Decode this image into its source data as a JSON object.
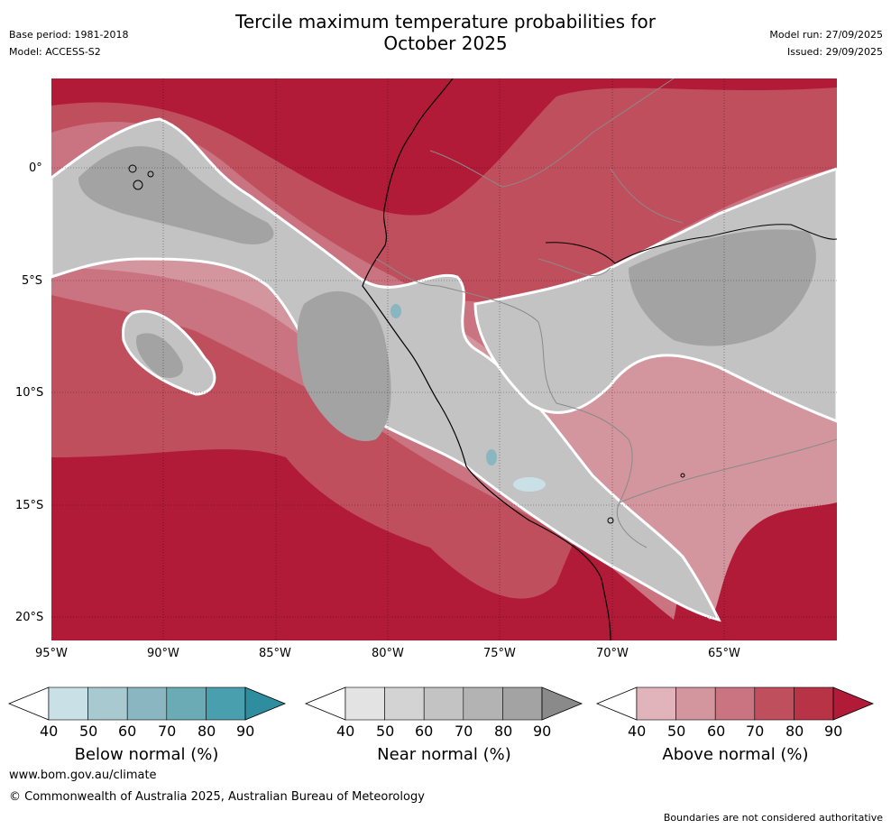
{
  "header": {
    "title_line1": "Tercile maximum temperature probabilities for",
    "title_line2": "October 2025",
    "base_period": "Base period: 1981-2018",
    "model": "Model: ACCESS-S2",
    "model_run": "Model run: 27/09/2025",
    "issued": "Issued: 29/09/2025"
  },
  "map": {
    "y_ticks": [
      "0°",
      "5°S",
      "10°S",
      "15°S",
      "20°S"
    ],
    "x_ticks": [
      "95°W",
      "90°W",
      "85°W",
      "80°W",
      "75°W",
      "70°W",
      "65°W"
    ]
  },
  "colorbars": [
    {
      "label": "Below normal (%)",
      "ticks": [
        "40",
        "50",
        "60",
        "70",
        "80",
        "90"
      ],
      "colors": [
        "#c9e1e6",
        "#a7c9cf",
        "#89b6c0",
        "#6aabb6",
        "#4a9fae",
        "#2f8da0"
      ]
    },
    {
      "label": "Near normal (%)",
      "ticks": [
        "40",
        "50",
        "60",
        "70",
        "80",
        "90"
      ],
      "colors": [
        "#e3e3e3",
        "#d3d3d3",
        "#c3c3c3",
        "#b3b3b3",
        "#a3a3a3",
        "#8a8a8a"
      ]
    },
    {
      "label": "Above normal (%)",
      "ticks": [
        "40",
        "50",
        "60",
        "70",
        "80",
        "90"
      ],
      "colors": [
        "#e0b4ba",
        "#d3969e",
        "#c97480",
        "#c04f5e",
        "#b83346",
        "#b21b37"
      ]
    }
  ],
  "footer": {
    "website": "www.bom.gov.au/climate",
    "copyright": "© Commonwealth of Australia 2025, Australian Bureau of Meteorology",
    "disclaimer": "Boundaries are not considered authoritative"
  }
}
